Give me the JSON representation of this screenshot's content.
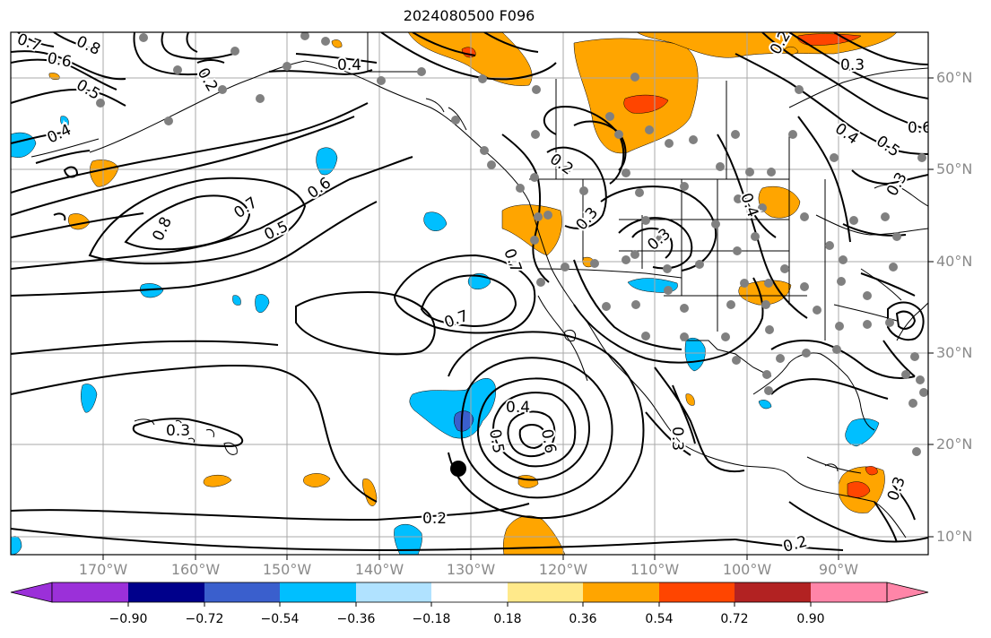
{
  "title": "2024080500 F096",
  "lat_labels": [
    "60°N",
    "50°N",
    "40°N",
    "30°N",
    "20°N",
    "10°N"
  ],
  "lon_labels": [
    "170°W",
    "160°W",
    "150°W",
    "140°W",
    "130°W",
    "120°W",
    "110°W",
    "100°W",
    "90°W"
  ],
  "contour_labels": [
    "0.7",
    "0.8",
    "0.6",
    "0.5",
    "0.4",
    "0.4",
    "0.3",
    "0.2",
    "0.6",
    "0.5",
    "0.4",
    "0.8",
    "0.7",
    "0.6",
    "0.5",
    "0.7",
    "0.4",
    "0.7",
    "0.2",
    "0.3",
    "0.2",
    "0.3",
    "0.3",
    "0.4",
    "0.5",
    "0.6",
    "0.3",
    "0.2",
    "0.2",
    "0.3",
    "0.3"
  ],
  "colorbar": {
    "colors": [
      "#9b30d9",
      "#00008b",
      "#3a5fcd",
      "#00bfff",
      "#b0e2ff",
      "#ffffff",
      "#ffe98a",
      "#ffa500",
      "#ff4500",
      "#b22222",
      "#ff85a8"
    ],
    "tick_labels": [
      "−0.90",
      "−0.72",
      "−0.54",
      "−0.36",
      "−0.18",
      "0.18",
      "0.36",
      "0.54",
      "0.72",
      "0.90"
    ]
  },
  "colors": {
    "fill_positive": "#ffa500",
    "fill_strong_positive": "#ff4500",
    "fill_negative": "#00bfff",
    "fill_strong_negative": "#3a5fcd",
    "station_dot": "#808080",
    "marker": "#000000"
  }
}
